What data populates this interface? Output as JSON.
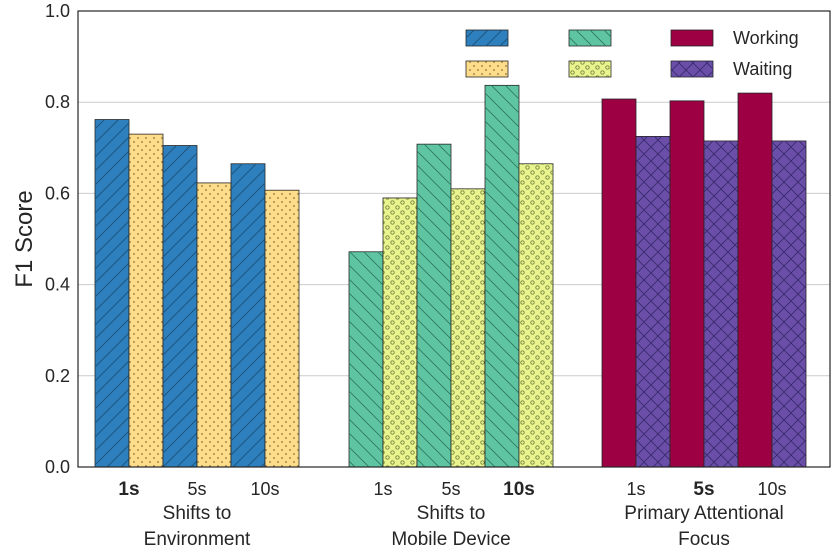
{
  "chart_data": {
    "type": "bar",
    "ylabel": "F1 Score",
    "ylim": [
      0.0,
      1.0
    ],
    "yticks": [
      "0.0",
      "0.2",
      "0.4",
      "0.6",
      "0.8",
      "1.0"
    ],
    "grid": true,
    "legend_position": "top-right",
    "groups": [
      {
        "label_lines": [
          "Shifts to",
          "Environment"
        ],
        "window_labels": [
          "1s",
          "5s",
          "10s"
        ],
        "bold_window": "1s",
        "series": [
          {
            "name": "",
            "color": "#2e7fbd",
            "hatch": "diag-right",
            "values": [
              0.762,
              0.705,
              0.665
            ]
          },
          {
            "name": "",
            "color": "#fddc8a",
            "hatch": "dots",
            "values": [
              0.73,
              0.623,
              0.607
            ]
          }
        ]
      },
      {
        "label_lines": [
          "Shifts to",
          "Mobile Device"
        ],
        "window_labels": [
          "1s",
          "5s",
          "10s"
        ],
        "bold_window": "10s",
        "series": [
          {
            "name": "",
            "color": "#5ec4a1",
            "hatch": "diag-left",
            "values": [
              0.472,
              0.708,
              0.837
            ]
          },
          {
            "name": "",
            "color": "#eaf48f",
            "hatch": "circles",
            "values": [
              0.59,
              0.61,
              0.665
            ]
          }
        ]
      },
      {
        "label_lines": [
          "Primary Attentional",
          "Focus"
        ],
        "window_labels": [
          "1s",
          "5s",
          "10s"
        ],
        "bold_window": "5s",
        "series": [
          {
            "name": "Working",
            "color": "#9d0043",
            "hatch": "none",
            "values": [
              0.807,
              0.803,
              0.82
            ]
          },
          {
            "name": "Waiting",
            "color": "#6a4ea8",
            "hatch": "cross",
            "values": [
              0.725,
              0.715,
              0.715
            ]
          }
        ]
      }
    ]
  }
}
